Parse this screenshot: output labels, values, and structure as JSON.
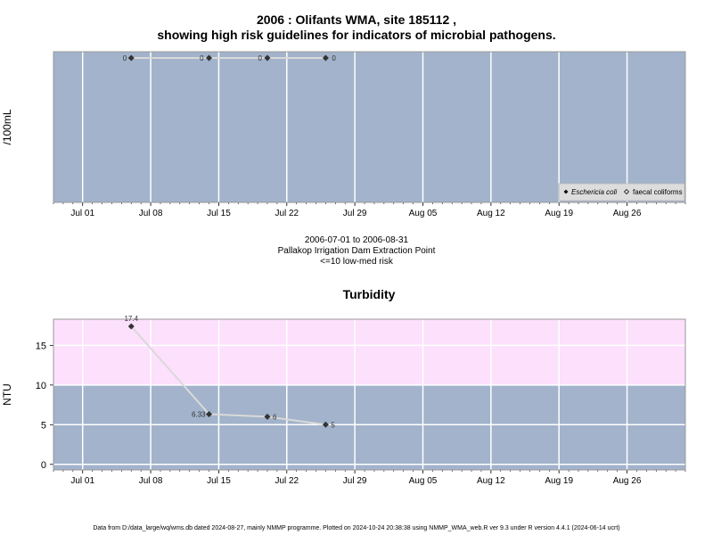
{
  "page": {
    "title_line1": "2006 : Olifants WMA, site 185112 ,",
    "title_line2": "showing high risk guidelines for indicators of microbial pathogens.",
    "date_range": "2006-07-01 to 2006-08-31",
    "site_name": "Pallakop Irrigation Dam Extraction Point",
    "risk_note": "<=10 low-med risk",
    "footer": "Data from D:/data_large/wq/wms.db dated 2024-08-27, mainly NMMP programme. Plotted on 2024-10-24 20:38:38 using NMMP_WMA_web.R ver 9.3 under R version 4.4.1 (2024-06-14 ucrt)"
  },
  "colors": {
    "panel_bg": "#a2b3cb",
    "high_risk_band": "#fce0fc",
    "grid": "#ffffff",
    "line": "#d9d9d9",
    "marker": "#333333"
  },
  "chart_data": [
    {
      "type": "line",
      "title": "",
      "xlabel": "",
      "ylabel": "/100mL",
      "x_tick_labels": [
        "Jul 01",
        "Jul 08",
        "Jul 15",
        "Jul 22",
        "Jul 29",
        "Aug 05",
        "Aug 12",
        "Aug 19",
        "Aug 26"
      ],
      "x_tick_dates": [
        "2006-07-01",
        "2006-07-08",
        "2006-07-15",
        "2006-07-22",
        "2006-07-29",
        "2006-08-05",
        "2006-08-12",
        "2006-08-19",
        "2006-08-26"
      ],
      "xlim": [
        "2006-06-28",
        "2006-09-01"
      ],
      "ylim": [
        0,
        1
      ],
      "grid": true,
      "legend_placement": "bottom-right",
      "legend": [
        "Eschericia coli",
        "faecal coliforms"
      ],
      "series": [
        {
          "name": "Eschericia coli",
          "x": [
            "2006-07-06",
            "2006-07-14",
            "2006-07-20",
            "2006-07-26"
          ],
          "y": [
            0,
            0,
            0,
            0
          ],
          "labels": [
            "0",
            "0",
            "0",
            "0"
          ]
        }
      ]
    },
    {
      "type": "line",
      "title": "Turbidity",
      "xlabel": "",
      "ylabel": "NTU",
      "x_tick_labels": [
        "Jul 01",
        "Jul 08",
        "Jul 15",
        "Jul 22",
        "Jul 29",
        "Aug 05",
        "Aug 12",
        "Aug 19",
        "Aug 26"
      ],
      "x_tick_dates": [
        "2006-07-01",
        "2006-07-08",
        "2006-07-15",
        "2006-07-22",
        "2006-07-29",
        "2006-08-05",
        "2006-08-12",
        "2006-08-19",
        "2006-08-26"
      ],
      "xlim": [
        "2006-06-28",
        "2006-09-01"
      ],
      "y_ticks": [
        0,
        5,
        10,
        15
      ],
      "ylim": [
        -0.7,
        18.3
      ],
      "grid": true,
      "high_risk_threshold": 10,
      "series": [
        {
          "name": "",
          "x": [
            "2006-07-06",
            "2006-07-14",
            "2006-07-20",
            "2006-07-26"
          ],
          "y": [
            17.4,
            6.33,
            6,
            5
          ],
          "labels": [
            "17.4",
            "6.33",
            "6",
            "5"
          ]
        }
      ]
    }
  ]
}
